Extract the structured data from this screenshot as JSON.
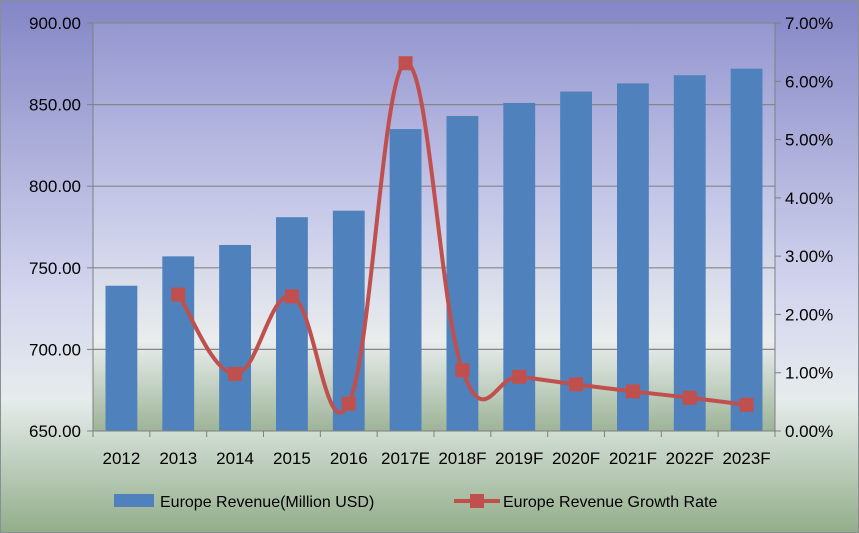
{
  "chart_data": {
    "type": "bar",
    "title": "",
    "xlabel": "",
    "ylabel": "",
    "y2label": "",
    "categories": [
      "2012",
      "2013",
      "2014",
      "2015",
      "2016",
      "2017E",
      "2018F",
      "2019F",
      "2020F",
      "2021F",
      "2022F",
      "2023F"
    ],
    "series": [
      {
        "name": "Europe Revenue(Million USD)",
        "type": "bar",
        "axis": "left",
        "color": "#4f81bd",
        "values": [
          739,
          757,
          764,
          781,
          785,
          835,
          843,
          851,
          858,
          863,
          868,
          872
        ]
      },
      {
        "name": "Europe Revenue Growth Rate",
        "type": "line",
        "axis": "right",
        "color": "#c0504d",
        "values": [
          null,
          2.34,
          0.98,
          2.31,
          0.47,
          6.31,
          1.04,
          0.93,
          0.8,
          0.68,
          0.57,
          0.45
        ]
      }
    ],
    "ylim": [
      650,
      900
    ],
    "yticks": [
      650,
      700,
      750,
      800,
      850,
      900
    ],
    "ytick_labels": [
      "650.00",
      "700.00",
      "750.00",
      "800.00",
      "850.00",
      "900.00"
    ],
    "y2lim": [
      0,
      7
    ],
    "y2ticks": [
      0,
      1,
      2,
      3,
      4,
      5,
      6,
      7
    ],
    "y2tick_labels": [
      "0.00%",
      "1.00%",
      "2.00%",
      "3.00%",
      "4.00%",
      "5.00%",
      "6.00%",
      "7.00%"
    ],
    "grid": true,
    "legend": "bottom"
  }
}
